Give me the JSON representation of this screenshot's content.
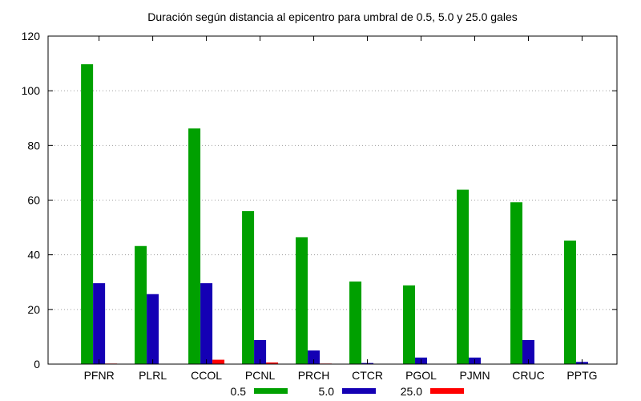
{
  "chart_data": {
    "type": "bar",
    "title": "Duración según distancia al epicentro para umbral de 0.5, 5.0 y 25.0 gales",
    "xlabel": "",
    "ylabel": "",
    "categories": [
      "PFNR",
      "PLRL",
      "CCOL",
      "PCNL",
      "PRCH",
      "CTCR",
      "PGOL",
      "PJMN",
      "CRUC",
      "PPTG"
    ],
    "series": [
      {
        "name": "0.5",
        "color": "#00a000",
        "values": [
          109.7,
          43.2,
          86.2,
          56.0,
          46.4,
          30.2,
          28.8,
          63.8,
          59.2,
          45.2
        ]
      },
      {
        "name": "5.0",
        "color": "#1400b4",
        "values": [
          29.6,
          25.6,
          29.6,
          8.8,
          5.0,
          0.4,
          2.4,
          2.4,
          8.8,
          0.8
        ]
      },
      {
        "name": "25.0",
        "color": "#ff0000",
        "values": [
          0.2,
          0.0,
          1.6,
          0.6,
          0.2,
          0.0,
          0.0,
          0.0,
          0.0,
          0.0
        ]
      }
    ],
    "ylim": [
      0,
      120
    ],
    "yticks": [
      "0",
      "20",
      "40",
      "60",
      "80",
      "100",
      "120"
    ],
    "grid": "horizontal dotted",
    "legend_position": "bottom"
  }
}
